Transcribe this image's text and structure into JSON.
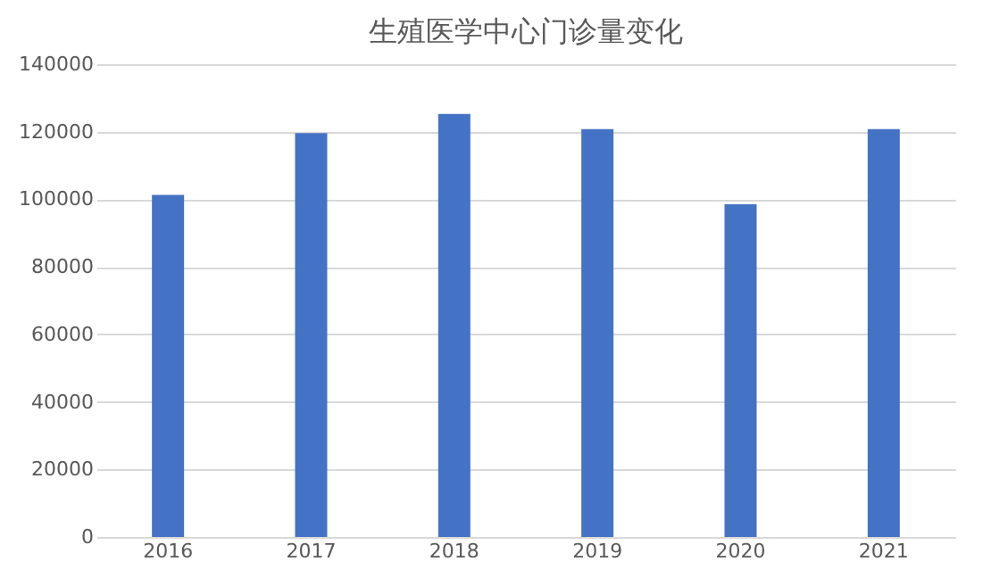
{
  "chart_data": {
    "type": "bar",
    "title": "生殖医学中心门诊量变化",
    "categories": [
      "2016",
      "2017",
      "2018",
      "2019",
      "2020",
      "2021"
    ],
    "values": [
      101300,
      119600,
      125300,
      120800,
      98500,
      120800
    ],
    "color": "#4472c4",
    "ylim": [
      0,
      140000
    ],
    "yticks": [
      0,
      20000,
      40000,
      60000,
      80000,
      100000,
      120000,
      140000
    ],
    "grid": "y"
  }
}
